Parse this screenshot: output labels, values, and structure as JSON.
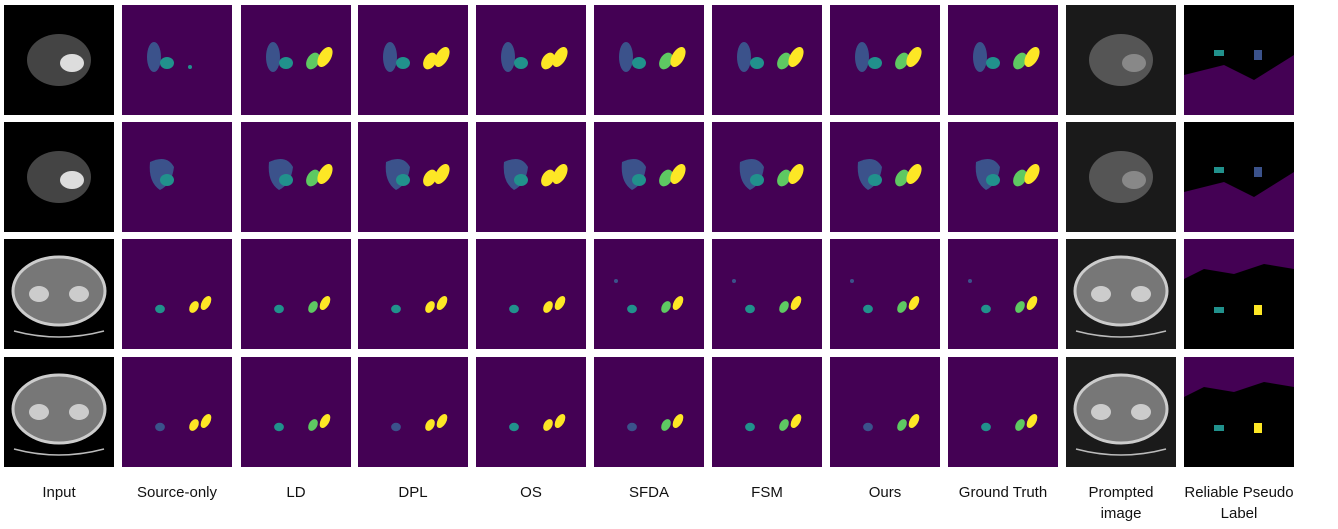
{
  "columns": [
    "Input",
    "Source-only",
    "LD",
    "DPL",
    "OS",
    "SFDA",
    "FSM",
    "Ours",
    "Ground Truth",
    "Prompted image",
    "Reliable Pseudo Label"
  ]
}
